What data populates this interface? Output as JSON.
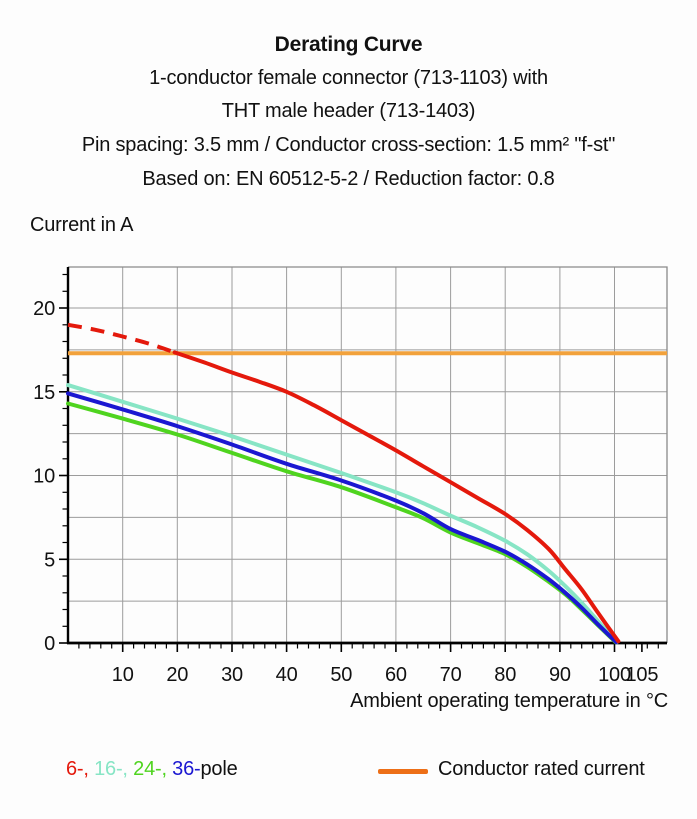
{
  "title": {
    "line1": "Derating Curve",
    "line2": "1-conductor female connector (713-1103) with",
    "line3": "THT male header (713-1403)",
    "line4": "Pin spacing: 3.5 mm / Conductor cross-section: 1.5 mm² \"f-st\"",
    "line5": "Based on: EN 60512-5-2 / Reduction factor: 0.8"
  },
  "chart_data": {
    "type": "line",
    "title": "Derating Curve",
    "x_axis_title": "Ambient operating temperature in °C",
    "y_axis_title": "Current in A",
    "x": {
      "min": 0,
      "max": 109.6,
      "tick_labels": [
        10,
        20,
        30,
        40,
        50,
        60,
        70,
        80,
        90,
        100,
        105
      ],
      "minor_tick_step": 2,
      "gridlines": [
        10,
        20,
        30,
        40,
        50,
        60,
        70,
        80,
        90,
        100
      ]
    },
    "y": {
      "min": 0,
      "max": 22.45,
      "tick_labels": [
        0,
        5,
        10,
        15,
        20
      ],
      "minor_tick_step": 1,
      "gridline_step": 2.5
    },
    "grid_color": "#9C9C9C",
    "frame_color": "#8A8A8A",
    "axis_color": "#000000",
    "reference_line": {
      "label": "Conductor rated current",
      "value": 17.3,
      "color": "#F2A23C",
      "swatch_color": "#ED6F17"
    },
    "draw_order": [
      "16-pole",
      "24-pole",
      "36-pole",
      "6-pole"
    ],
    "series": [
      {
        "name": "6-pole",
        "color": "#E4190C",
        "dashed_points": [
          [
            0,
            19.0
          ],
          [
            5,
            18.7
          ],
          [
            10,
            18.3
          ],
          [
            15,
            17.85
          ],
          [
            19.5,
            17.35
          ]
        ],
        "points": [
          [
            19.5,
            17.35
          ],
          [
            25,
            16.75
          ],
          [
            30,
            16.15
          ],
          [
            35,
            15.6
          ],
          [
            40,
            15.0
          ],
          [
            45,
            14.2
          ],
          [
            50,
            13.3
          ],
          [
            55,
            12.4
          ],
          [
            60,
            11.5
          ],
          [
            65,
            10.55
          ],
          [
            70,
            9.6
          ],
          [
            75,
            8.65
          ],
          [
            80,
            7.7
          ],
          [
            84,
            6.75
          ],
          [
            88,
            5.6
          ],
          [
            91,
            4.4
          ],
          [
            94,
            3.2
          ],
          [
            97,
            1.8
          ],
          [
            100.7,
            0.1
          ]
        ]
      },
      {
        "name": "16-pole",
        "color": "#87E5C5",
        "points": [
          [
            0,
            15.4
          ],
          [
            10,
            14.4
          ],
          [
            20,
            13.4
          ],
          [
            30,
            12.35
          ],
          [
            40,
            11.25
          ],
          [
            50,
            10.15
          ],
          [
            60,
            9.0
          ],
          [
            65,
            8.35
          ],
          [
            70,
            7.6
          ],
          [
            75,
            6.9
          ],
          [
            80,
            6.1
          ],
          [
            84,
            5.3
          ],
          [
            88,
            4.3
          ],
          [
            91,
            3.4
          ],
          [
            94,
            2.4
          ],
          [
            97,
            1.3
          ],
          [
            100.4,
            0.05
          ]
        ]
      },
      {
        "name": "24-pole",
        "color": "#4FD41F",
        "points": [
          [
            0,
            14.3
          ],
          [
            10,
            13.4
          ],
          [
            20,
            12.45
          ],
          [
            30,
            11.35
          ],
          [
            40,
            10.25
          ],
          [
            50,
            9.3
          ],
          [
            60,
            8.1
          ],
          [
            65,
            7.45
          ],
          [
            70,
            6.6
          ],
          [
            75,
            5.95
          ],
          [
            80,
            5.3
          ],
          [
            84,
            4.55
          ],
          [
            88,
            3.65
          ],
          [
            91,
            2.9
          ],
          [
            94,
            2.0
          ],
          [
            97,
            1.05
          ],
          [
            100.2,
            0.05
          ]
        ]
      },
      {
        "name": "36-pole",
        "color": "#1B17D1",
        "points": [
          [
            0,
            14.9
          ],
          [
            10,
            13.95
          ],
          [
            20,
            12.95
          ],
          [
            30,
            11.85
          ],
          [
            40,
            10.7
          ],
          [
            50,
            9.7
          ],
          [
            60,
            8.5
          ],
          [
            65,
            7.75
          ],
          [
            70,
            6.8
          ],
          [
            75,
            6.15
          ],
          [
            80,
            5.45
          ],
          [
            84,
            4.7
          ],
          [
            88,
            3.8
          ],
          [
            91,
            3.0
          ],
          [
            94,
            2.1
          ],
          [
            97,
            1.1
          ],
          [
            100.3,
            0.05
          ]
        ]
      }
    ]
  },
  "legend": {
    "parts": [
      {
        "text": "6-, ",
        "color": "#E4190C"
      },
      {
        "text": "16-, ",
        "color": "#87E5C5"
      },
      {
        "text": "24-, ",
        "color": "#4FD41F"
      },
      {
        "text": "36-",
        "color": "#1B17D1"
      },
      {
        "text": "pole",
        "color": "#111111"
      }
    ],
    "reference_label": "Conductor rated current"
  },
  "colors": {
    "background": "#FDFDFD",
    "text": "#111111"
  }
}
